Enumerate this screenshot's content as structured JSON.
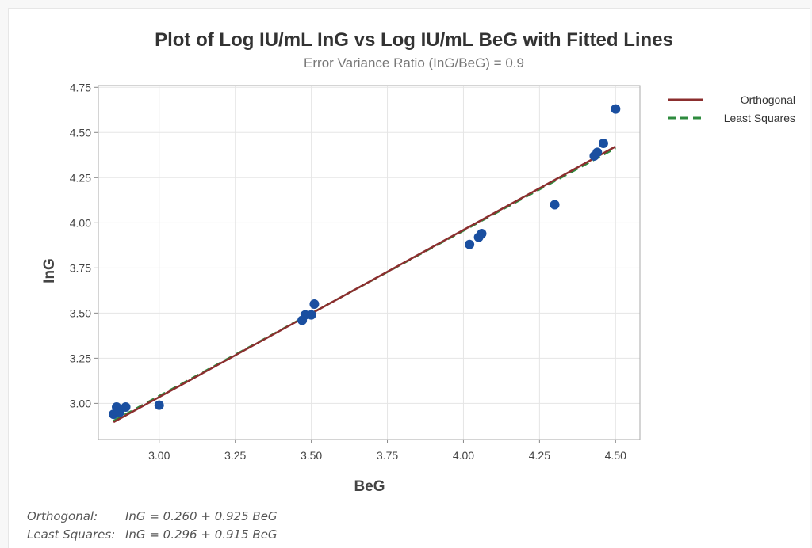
{
  "chart_data": {
    "type": "scatter",
    "title": "Plot of Log IU/mL InG vs Log IU/mL BeG with Fitted Lines",
    "subtitle": "Error Variance Ratio (InG/BeG) = 0.9",
    "xlabel": "BeG",
    "ylabel": "InG",
    "xlim": [
      2.8,
      4.58
    ],
    "ylim": [
      2.8,
      4.76
    ],
    "xticks": [
      "3.00",
      "3.25",
      "3.50",
      "3.75",
      "4.00",
      "4.25",
      "4.50"
    ],
    "yticks": [
      "3.00",
      "3.25",
      "3.50",
      "3.75",
      "4.00",
      "4.25",
      "4.50",
      "4.75"
    ],
    "grid": true,
    "legend_position": "right",
    "points": [
      {
        "x": 2.85,
        "y": 2.94
      },
      {
        "x": 2.86,
        "y": 2.98
      },
      {
        "x": 2.87,
        "y": 2.95
      },
      {
        "x": 2.89,
        "y": 2.98
      },
      {
        "x": 3.0,
        "y": 2.99
      },
      {
        "x": 3.47,
        "y": 3.46
      },
      {
        "x": 3.48,
        "y": 3.49
      },
      {
        "x": 3.5,
        "y": 3.49
      },
      {
        "x": 3.51,
        "y": 3.55
      },
      {
        "x": 4.02,
        "y": 3.88
      },
      {
        "x": 4.05,
        "y": 3.92
      },
      {
        "x": 4.06,
        "y": 3.94
      },
      {
        "x": 4.3,
        "y": 4.1
      },
      {
        "x": 4.43,
        "y": 4.37
      },
      {
        "x": 4.44,
        "y": 4.39
      },
      {
        "x": 4.46,
        "y": 4.44
      },
      {
        "x": 4.5,
        "y": 4.63
      }
    ],
    "fitted_lines": [
      {
        "name": "Orthogonal",
        "intercept": 0.26,
        "slope": 0.925,
        "x_range": [
          2.85,
          4.5
        ],
        "color": "#8B2E2E",
        "style": "solid"
      },
      {
        "name": "Least Squares",
        "intercept": 0.296,
        "slope": 0.915,
        "x_range": [
          2.85,
          4.5
        ],
        "color": "#2E8B3E",
        "style": "dashed"
      }
    ],
    "point_color": "#1A4FA0"
  },
  "equations": [
    {
      "label": "Orthogonal:",
      "formula": "InG = 0.260 + 0.925 BeG"
    },
    {
      "label": "Least Squares:",
      "formula": "InG = 0.296 + 0.915 BeG"
    }
  ]
}
